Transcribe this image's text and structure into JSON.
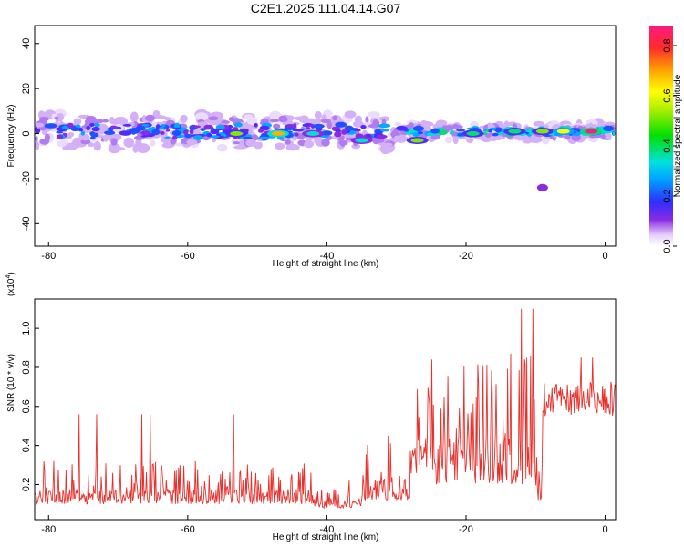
{
  "figure_title": "C2E1.2025.111.04.14.G07",
  "chart_data": [
    {
      "type": "heatmap",
      "xlabel": "Height of straight line (km)",
      "ylabel": "Frequency (Hz)",
      "xlim": [
        -82,
        1.5
      ],
      "ylim": [
        -50,
        48
      ],
      "xticks": [
        -80,
        -60,
        -40,
        -20,
        0
      ],
      "xtick_labels": [
        "-80",
        "-60",
        "-40",
        "-20",
        "0"
      ],
      "yticks": [
        40,
        20,
        0,
        -20,
        -40
      ],
      "ytick_labels": [
        "40",
        "20",
        "0",
        "-20",
        "-40"
      ],
      "colorbar": {
        "label": "Normalized spectral amplitude",
        "range": [
          0,
          0.88
        ],
        "ticks": [
          0.0,
          0.2,
          0.4,
          0.6,
          0.8
        ],
        "tick_labels": [
          "0.0",
          "0.2",
          "0.4",
          "0.6",
          "0.8"
        ]
      },
      "band": {
        "center_frequency_hz": 1,
        "hot_spots": [
          {
            "x": -53,
            "y": 0,
            "v": 0.6
          },
          {
            "x": -47,
            "y": 0,
            "v": 0.75
          },
          {
            "x": -42,
            "y": 0,
            "v": 0.5
          },
          {
            "x": -35,
            "y": -3,
            "v": 0.45
          },
          {
            "x": -27,
            "y": -3,
            "v": 0.6
          },
          {
            "x": -19,
            "y": 0,
            "v": 0.55
          },
          {
            "x": -13,
            "y": 1,
            "v": 0.55
          },
          {
            "x": -9,
            "y": 1,
            "v": 0.6
          },
          {
            "x": -6,
            "y": 1,
            "v": 0.7
          },
          {
            "x": -2,
            "y": 1,
            "v": 0.85
          }
        ],
        "isolated_blob": {
          "x": -9,
          "y": -24,
          "v": 0.2
        }
      }
    },
    {
      "type": "line",
      "xlabel": "Height of straight line (km)",
      "ylabel": "SNR (10 * v/v)",
      "ylabel_scale_prefix": "(x10",
      "ylabel_scale_exponent": "4",
      "ylabel_scale_suffix": ")",
      "xlim": [
        -82,
        1.5
      ],
      "ylim": [
        0.02,
        1.15
      ],
      "xticks": [
        -80,
        -60,
        -40,
        -20,
        0
      ],
      "xtick_labels": [
        "-80",
        "-60",
        "-40",
        "-20",
        "0"
      ],
      "yticks": [
        0.2,
        0.4,
        0.6,
        0.8,
        1.0
      ],
      "ytick_labels": [
        "0.2",
        "0.4",
        "0.6",
        "0.8",
        "1.0"
      ],
      "series": [
        {
          "name": "SNR",
          "color": "#e8302c",
          "segments": [
            {
              "x": [
                -82,
                -42
              ],
              "base": 0.1,
              "spread": 0.22,
              "peak": 0.56
            },
            {
              "x": [
                -42,
                -35
              ],
              "base": 0.08,
              "spread": 0.1,
              "peak": 0.22
            },
            {
              "x": [
                -35,
                -28
              ],
              "base": 0.12,
              "spread": 0.3,
              "peak": 0.45
            },
            {
              "x": [
                -28,
                -25
              ],
              "base": 0.25,
              "spread": 0.45,
              "peak": 0.65
            },
            {
              "x": [
                -25,
                -10
              ],
              "base": 0.2,
              "spread": 0.7,
              "peak": 1.1
            },
            {
              "x": [
                -10,
                -9
              ],
              "base": 0.1,
              "spread": 0.3,
              "peak": 0.3
            },
            {
              "x": [
                -9,
                1.5
              ],
              "base": 0.62,
              "spread": 0.18,
              "peak": 0.85
            }
          ]
        }
      ]
    }
  ]
}
